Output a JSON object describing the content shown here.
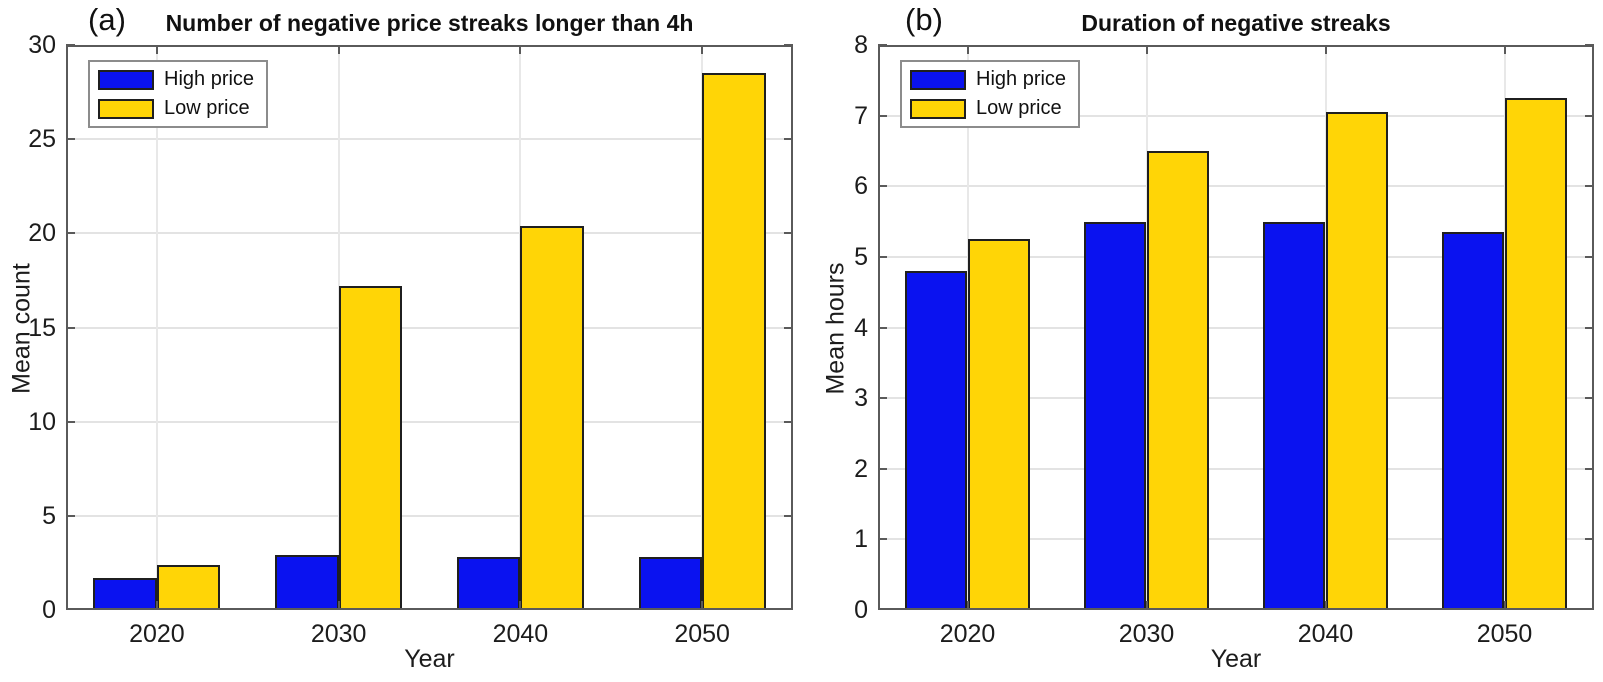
{
  "figure": {
    "background": "#ffffff"
  },
  "chart_data": [
    {
      "type": "bar",
      "panel_label": "(a)",
      "title": "Number of negative price streaks longer than 4h",
      "xlabel": "Year",
      "ylabel": "Mean count",
      "categories": [
        "2020",
        "2030",
        "2040",
        "2050"
      ],
      "y_ticks": [
        0,
        5,
        10,
        15,
        20,
        25,
        30
      ],
      "ylim": [
        0,
        30
      ],
      "grid": true,
      "legend_position": "top-left",
      "series": [
        {
          "name": "High price",
          "color": "#0a12f0",
          "values": [
            1.7,
            2.9,
            2.8,
            2.8
          ]
        },
        {
          "name": "Low price",
          "color": "#ffd506",
          "values": [
            2.4,
            17.2,
            20.4,
            28.5
          ]
        }
      ]
    },
    {
      "type": "bar",
      "panel_label": "(b)",
      "title": "Duration of negative streaks",
      "xlabel": "Year",
      "ylabel": "Mean hours",
      "categories": [
        "2020",
        "2030",
        "2040",
        "2050"
      ],
      "y_ticks": [
        0,
        1,
        2,
        3,
        4,
        5,
        6,
        7,
        8
      ],
      "ylim": [
        0,
        8
      ],
      "grid": true,
      "legend_position": "top-left",
      "series": [
        {
          "name": "High price",
          "color": "#0a12f0",
          "values": [
            4.8,
            5.5,
            5.5,
            5.35
          ]
        },
        {
          "name": "Low price",
          "color": "#ffd506",
          "values": [
            5.25,
            6.5,
            7.05,
            7.25
          ]
        }
      ]
    }
  ]
}
